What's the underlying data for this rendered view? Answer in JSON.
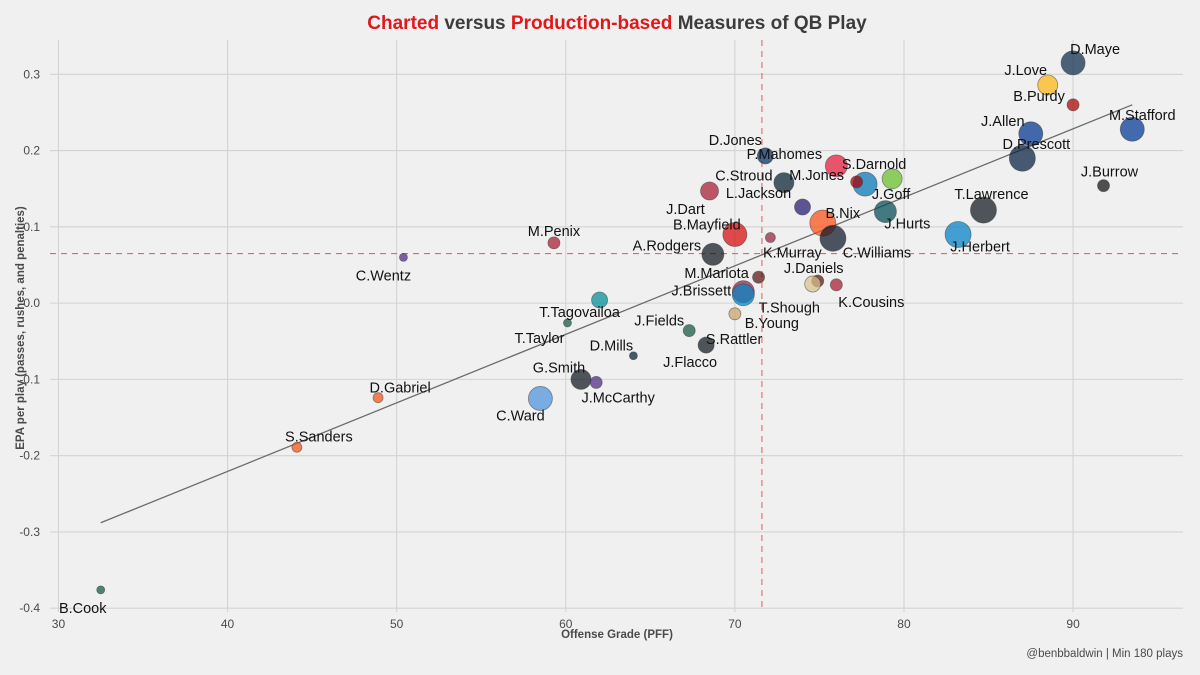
{
  "chart_data": {
    "type": "scatter",
    "title_parts": [
      {
        "text": "Charted",
        "color": "#e0181b"
      },
      {
        "text": " versus ",
        "color": "#3c3c3c"
      },
      {
        "text": "Production-based",
        "color": "#e0181b"
      },
      {
        "text": " Measures of QB Play",
        "color": "#3c3c3c"
      }
    ],
    "xlabel": "Offense Grade (PFF)",
    "ylabel": "EPA per play (passes, rushes, and penalties)",
    "xlim": [
      29.5,
      96.5
    ],
    "ylim": [
      -0.405,
      0.345
    ],
    "xticks": [
      30,
      40,
      50,
      60,
      70,
      80,
      90
    ],
    "yticks": [
      -0.4,
      -0.3,
      -0.2,
      -0.1,
      0.0,
      0.1,
      0.2,
      0.3
    ],
    "ytick_labels": [
      "-0.4",
      "-0.3",
      "-0.2",
      "-0.1",
      "0.0",
      "0.1",
      "0.2",
      "0.3"
    ],
    "xtick_labels": [
      "30",
      "40",
      "50",
      "60",
      "70",
      "80",
      "90"
    ],
    "ref_lines": {
      "x": 71.6,
      "y": 0.065,
      "color": "#e56666"
    },
    "trend_line": {
      "x1": 32.5,
      "y1": -0.288,
      "x2": 93.5,
      "y2": 0.26,
      "color": "#6b6b6b"
    },
    "caption": "@benbbaldwin | Min 180 plays",
    "points": [
      {
        "name": "D.Maye",
        "x": 90.0,
        "y": 0.315,
        "size": 12,
        "color": "#0b2a4a",
        "label_dx": 22,
        "label_dy": -14
      },
      {
        "name": "J.Love",
        "x": 88.5,
        "y": 0.286,
        "size": 10,
        "color": "#ffb612",
        "label_dx": -22,
        "label_dy": -15
      },
      {
        "name": "B.Purdy",
        "x": 90.0,
        "y": 0.26,
        "size": 6,
        "color": "#aa0000",
        "label_dx": -34,
        "label_dy": -9
      },
      {
        "name": "M.Stafford",
        "x": 93.5,
        "y": 0.228,
        "size": 12,
        "color": "#003594",
        "label_dx": 10,
        "label_dy": -14
      },
      {
        "name": "J.Allen",
        "x": 87.5,
        "y": 0.222,
        "size": 12,
        "color": "#00338d",
        "label_dx": -28,
        "label_dy": -13
      },
      {
        "name": "D.Prescott",
        "x": 87.0,
        "y": 0.19,
        "size": 13,
        "color": "#041e42",
        "label_dx": 14,
        "label_dy": -14
      },
      {
        "name": "J.Burrow",
        "x": 91.8,
        "y": 0.154,
        "size": 6,
        "color": "#111111",
        "label_dx": 6,
        "label_dy": -14
      },
      {
        "name": "T.Lawrence",
        "x": 84.7,
        "y": 0.122,
        "size": 13,
        "color": "#101820",
        "label_dx": 8,
        "label_dy": -16
      },
      {
        "name": "J.Herbert",
        "x": 83.2,
        "y": 0.09,
        "size": 13,
        "color": "#0080c6",
        "label_dx": 22,
        "label_dy": 12
      },
      {
        "name": "S.Darnold",
        "x": 79.3,
        "y": 0.163,
        "size": 10,
        "color": "#69be28",
        "label_dx": -18,
        "label_dy": -15
      },
      {
        "name": "J.Goff",
        "x": 77.7,
        "y": 0.156,
        "size": 12,
        "color": "#0076b6",
        "label_dx": 26,
        "label_dy": 10
      },
      {
        "name": "J.Hurts",
        "x": 78.9,
        "y": 0.12,
        "size": 11,
        "color": "#004c54",
        "label_dx": 22,
        "label_dy": 12
      },
      {
        "name": "M.Jones",
        "x": 77.2,
        "y": 0.159,
        "size": 6,
        "color": "#aa0000",
        "label_dx": -40,
        "label_dy": -7
      },
      {
        "name": "C.Stroud",
        "x": 72.9,
        "y": 0.158,
        "size": 10,
        "color": "#03202f",
        "label_dx": -40,
        "label_dy": -7
      },
      {
        "name": "D.Jones",
        "x": 71.8,
        "y": 0.193,
        "size": 8,
        "color": "#002c5f",
        "label_dx": -30,
        "label_dy": -16
      },
      {
        "name": "P.Mahomes",
        "x": 76.0,
        "y": 0.18,
        "size": 11,
        "color": "#e31837",
        "label_dx": -52,
        "label_dy": -12
      },
      {
        "name": "L.Jackson",
        "x": 74.0,
        "y": 0.126,
        "size": 8,
        "color": "#241773",
        "label_dx": -44,
        "label_dy": -14
      },
      {
        "name": "B.Nix",
        "x": 75.2,
        "y": 0.105,
        "size": 13,
        "color": "#fb4f14",
        "label_dx": 20,
        "label_dy": -10
      },
      {
        "name": "C.Williams",
        "x": 75.8,
        "y": 0.085,
        "size": 13,
        "color": "#0b162a",
        "label_dx": 44,
        "label_dy": 14
      },
      {
        "name": "K.Murray",
        "x": 72.1,
        "y": 0.086,
        "size": 5,
        "color": "#97233f",
        "label_dx": 22,
        "label_dy": 15
      },
      {
        "name": "J.Dart",
        "x": 68.5,
        "y": 0.147,
        "size": 9,
        "color": "#a71930",
        "label_dx": -24,
        "label_dy": 18
      },
      {
        "name": "B.Mayfield",
        "x": 70.0,
        "y": 0.09,
        "size": 12,
        "color": "#d50a0a",
        "label_dx": -28,
        "label_dy": -10
      },
      {
        "name": "A.Rodgers",
        "x": 68.7,
        "y": 0.064,
        "size": 11,
        "color": "#101820",
        "label_dx": -46,
        "label_dy": -9
      },
      {
        "name": "M.Mariota",
        "x": 71.4,
        "y": 0.034,
        "size": 6,
        "color": "#5a1414",
        "label_dx": -42,
        "label_dy": -4
      },
      {
        "name": "J.Daniels",
        "x": 74.9,
        "y": 0.029,
        "size": 6,
        "color": "#5a1414",
        "label_dx": -4,
        "label_dy": -13
      },
      {
        "name": "K.Cousins",
        "x": 76.0,
        "y": 0.024,
        "size": 6,
        "color": "#a71930",
        "label_dx": 35,
        "label_dy": 17
      },
      {
        "name": "J.Brissett",
        "x": 70.5,
        "y": 0.015,
        "size": 11,
        "color": "#97233f",
        "label_dx": -42,
        "label_dy": -1
      },
      {
        "name": "T.Shough",
        "x": 70.5,
        "y": 0.011,
        "size": 11,
        "color": "#0085ca",
        "label_dx": 46,
        "label_dy": 13
      },
      {
        "name": "J.Daniels2",
        "x": 74.6,
        "y": 0.025,
        "size": 8,
        "color": "#d8c08a",
        "label_dx": 0,
        "label_dy": 0,
        "hide_label": true
      },
      {
        "name": "B.Young",
        "x": 70.0,
        "y": -0.014,
        "size": 6,
        "color": "#c9a36b",
        "label_dx": 37,
        "label_dy": 9
      },
      {
        "name": "T.Tagovailoa",
        "x": 62.0,
        "y": 0.004,
        "size": 8,
        "color": "#008e97",
        "label_dx": -20,
        "label_dy": 12
      },
      {
        "name": "C.Wentz",
        "x": 50.4,
        "y": 0.06,
        "size": 4,
        "color": "#4f2683",
        "label_dx": -20,
        "label_dy": 18
      },
      {
        "name": "M.Penix",
        "x": 59.3,
        "y": 0.079,
        "size": 6,
        "color": "#a71930",
        "label_dx": 0,
        "label_dy": -12
      },
      {
        "name": "T.Taylor",
        "x": 60.1,
        "y": -0.026,
        "size": 4,
        "color": "#125740",
        "label_dx": -28,
        "label_dy": 15
      },
      {
        "name": "J.Fields",
        "x": 67.3,
        "y": -0.036,
        "size": 6,
        "color": "#125740",
        "label_dx": -30,
        "label_dy": -10
      },
      {
        "name": "D.Mills",
        "x": 64.0,
        "y": -0.069,
        "size": 4,
        "color": "#03202f",
        "label_dx": -22,
        "label_dy": -10
      },
      {
        "name": "S.Rattler",
        "x": 68.3,
        "y": -0.055,
        "size": 8,
        "color": "#101820",
        "label_dx": 28,
        "label_dy": -6
      },
      {
        "name": "J.Flacco",
        "x": 68.3,
        "y": -0.055,
        "size": 0,
        "color": "#101820",
        "label_dx": -16,
        "label_dy": 17,
        "hide_dot": true
      },
      {
        "name": "G.Smith",
        "x": 60.9,
        "y": -0.1,
        "size": 10,
        "color": "#101820",
        "label_dx": -22,
        "label_dy": -12
      },
      {
        "name": "J.McCarthy",
        "x": 61.8,
        "y": -0.104,
        "size": 6,
        "color": "#4f2683",
        "label_dx": 22,
        "label_dy": 15
      },
      {
        "name": "C.Ward",
        "x": 58.5,
        "y": -0.125,
        "size": 12,
        "color": "#4b92db",
        "label_dx": -20,
        "label_dy": 17
      },
      {
        "name": "D.Gabriel",
        "x": 48.9,
        "y": -0.124,
        "size": 5,
        "color": "#fb4f14",
        "label_dx": 22,
        "label_dy": -10
      },
      {
        "name": "S.Sanders",
        "x": 44.1,
        "y": -0.189,
        "size": 5,
        "color": "#fb4f14",
        "label_dx": 22,
        "label_dy": -11
      },
      {
        "name": "B.Cook",
        "x": 32.5,
        "y": -0.376,
        "size": 4,
        "color": "#125740",
        "label_dx": -18,
        "label_dy": 18
      }
    ]
  }
}
